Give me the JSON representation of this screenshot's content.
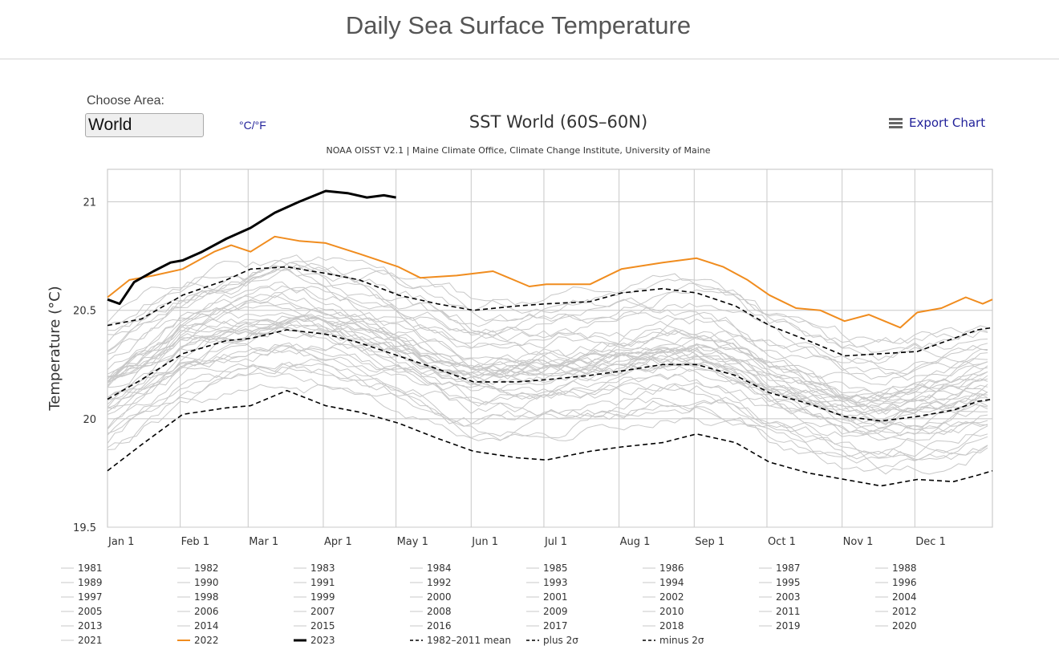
{
  "page": {
    "title": "Daily Sea Surface Temperature",
    "choose_label": "Choose Area:",
    "area_value": "World",
    "unit_toggle": "°C/°F",
    "export_label": "Export Chart"
  },
  "colors": {
    "grey_years": "#c8c8c8",
    "highlight_2022": "#f08c1e",
    "highlight_2023": "#000000",
    "mean_lines": "#000000"
  },
  "chart_data": {
    "type": "line",
    "title": "SST World (60S–60N)",
    "subtitle": "NOAA OISST V2.1 | Maine Climate Office, Climate Change Institute, University of Maine",
    "xlabel": "",
    "ylabel": "Temperature (°C)",
    "xlim": [
      1,
      366
    ],
    "ylim": [
      19.5,
      21.15
    ],
    "yticks": [
      19.5,
      20,
      20.5,
      21
    ],
    "ytick_labels": [
      "19.5",
      "20",
      "20.5",
      "21"
    ],
    "month_ticks": [
      {
        "day": 1,
        "label": "Jan 1"
      },
      {
        "day": 32,
        "label": "Feb 1"
      },
      {
        "day": 60,
        "label": "Mar 1"
      },
      {
        "day": 91,
        "label": "Apr 1"
      },
      {
        "day": 121,
        "label": "May 1"
      },
      {
        "day": 152,
        "label": "Jun 1"
      },
      {
        "day": 182,
        "label": "Jul 1"
      },
      {
        "day": 213,
        "label": "Aug 1"
      },
      {
        "day": 244,
        "label": "Sep 1"
      },
      {
        "day": 274,
        "label": "Oct 1"
      },
      {
        "day": 305,
        "label": "Nov 1"
      },
      {
        "day": 335,
        "label": "Dec 1"
      }
    ],
    "grid": true,
    "series": [
      {
        "name": "1982-2011 mean",
        "style": "dashed",
        "color": "#000000",
        "points": [
          [
            1,
            20.09
          ],
          [
            15,
            20.18
          ],
          [
            32,
            20.3
          ],
          [
            50,
            20.36
          ],
          [
            60,
            20.37
          ],
          [
            75,
            20.41
          ],
          [
            91,
            20.39
          ],
          [
            105,
            20.35
          ],
          [
            121,
            20.29
          ],
          [
            137,
            20.23
          ],
          [
            152,
            20.17
          ],
          [
            170,
            20.17
          ],
          [
            182,
            20.18
          ],
          [
            200,
            20.2
          ],
          [
            213,
            20.22
          ],
          [
            230,
            20.25
          ],
          [
            244,
            20.25
          ],
          [
            260,
            20.2
          ],
          [
            274,
            20.12
          ],
          [
            290,
            20.07
          ],
          [
            305,
            20.01
          ],
          [
            320,
            19.99
          ],
          [
            335,
            20.01
          ],
          [
            350,
            20.04
          ],
          [
            360,
            20.08
          ],
          [
            366,
            20.09
          ]
        ]
      },
      {
        "name": "plus 2σ",
        "style": "dashed",
        "color": "#000000",
        "points": [
          [
            1,
            20.43
          ],
          [
            15,
            20.46
          ],
          [
            32,
            20.57
          ],
          [
            50,
            20.64
          ],
          [
            60,
            20.69
          ],
          [
            75,
            20.7
          ],
          [
            91,
            20.67
          ],
          [
            105,
            20.64
          ],
          [
            121,
            20.57
          ],
          [
            137,
            20.53
          ],
          [
            152,
            20.5
          ],
          [
            170,
            20.52
          ],
          [
            182,
            20.53
          ],
          [
            200,
            20.54
          ],
          [
            213,
            20.58
          ],
          [
            230,
            20.6
          ],
          [
            244,
            20.58
          ],
          [
            260,
            20.52
          ],
          [
            274,
            20.43
          ],
          [
            290,
            20.36
          ],
          [
            305,
            20.29
          ],
          [
            320,
            20.3
          ],
          [
            335,
            20.31
          ],
          [
            350,
            20.37
          ],
          [
            360,
            20.41
          ],
          [
            366,
            20.42
          ]
        ]
      },
      {
        "name": "minus 2σ",
        "style": "dashed",
        "color": "#000000",
        "points": [
          [
            1,
            19.76
          ],
          [
            15,
            19.88
          ],
          [
            32,
            20.02
          ],
          [
            50,
            20.05
          ],
          [
            60,
            20.06
          ],
          [
            75,
            20.13
          ],
          [
            91,
            20.06
          ],
          [
            105,
            20.03
          ],
          [
            121,
            19.98
          ],
          [
            137,
            19.91
          ],
          [
            152,
            19.85
          ],
          [
            170,
            19.82
          ],
          [
            182,
            19.81
          ],
          [
            200,
            19.85
          ],
          [
            213,
            19.87
          ],
          [
            230,
            19.89
          ],
          [
            244,
            19.93
          ],
          [
            260,
            19.89
          ],
          [
            274,
            19.8
          ],
          [
            290,
            19.75
          ],
          [
            305,
            19.72
          ],
          [
            320,
            19.69
          ],
          [
            335,
            19.72
          ],
          [
            350,
            19.71
          ],
          [
            360,
            19.74
          ],
          [
            366,
            19.76
          ]
        ]
      },
      {
        "name": "2022",
        "style": "solid",
        "color": "#f08c1e",
        "points": [
          [
            1,
            20.56
          ],
          [
            10,
            20.64
          ],
          [
            20,
            20.66
          ],
          [
            32,
            20.69
          ],
          [
            45,
            20.77
          ],
          [
            52,
            20.8
          ],
          [
            60,
            20.77
          ],
          [
            70,
            20.84
          ],
          [
            80,
            20.82
          ],
          [
            91,
            20.81
          ],
          [
            105,
            20.76
          ],
          [
            121,
            20.7
          ],
          [
            130,
            20.65
          ],
          [
            145,
            20.66
          ],
          [
            160,
            20.68
          ],
          [
            175,
            20.61
          ],
          [
            182,
            20.62
          ],
          [
            200,
            20.62
          ],
          [
            213,
            20.69
          ],
          [
            230,
            20.72
          ],
          [
            244,
            20.74
          ],
          [
            255,
            20.7
          ],
          [
            265,
            20.64
          ],
          [
            274,
            20.57
          ],
          [
            285,
            20.51
          ],
          [
            295,
            20.5
          ],
          [
            305,
            20.45
          ],
          [
            315,
            20.48
          ],
          [
            328,
            20.42
          ],
          [
            335,
            20.49
          ],
          [
            345,
            20.51
          ],
          [
            355,
            20.56
          ],
          [
            362,
            20.53
          ],
          [
            366,
            20.55
          ]
        ]
      },
      {
        "name": "2023",
        "style": "solid",
        "color": "#000000",
        "points": [
          [
            1,
            20.55
          ],
          [
            6,
            20.53
          ],
          [
            12,
            20.63
          ],
          [
            20,
            20.68
          ],
          [
            27,
            20.72
          ],
          [
            32,
            20.73
          ],
          [
            40,
            20.77
          ],
          [
            50,
            20.83
          ],
          [
            60,
            20.88
          ],
          [
            70,
            20.95
          ],
          [
            80,
            21.0
          ],
          [
            91,
            21.05
          ],
          [
            100,
            21.04
          ],
          [
            108,
            21.02
          ],
          [
            115,
            21.03
          ],
          [
            120,
            21.02
          ]
        ]
      }
    ],
    "legend": {
      "placement": "bottom",
      "entries": [
        "1981",
        "1982",
        "1983",
        "1984",
        "1985",
        "1986",
        "1987",
        "1988",
        "1989",
        "1990",
        "1991",
        "1992",
        "1993",
        "1994",
        "1995",
        "1996",
        "1997",
        "1998",
        "1999",
        "2000",
        "2001",
        "2002",
        "2003",
        "2004",
        "2005",
        "2006",
        "2007",
        "2008",
        "2009",
        "2010",
        "2011",
        "2012",
        "2013",
        "2014",
        "2015",
        "2016",
        "2017",
        "2018",
        "2019",
        "2020",
        "2021",
        "2022",
        "2023",
        "1982–2011 mean",
        "plus 2σ",
        "minus 2σ"
      ]
    }
  }
}
